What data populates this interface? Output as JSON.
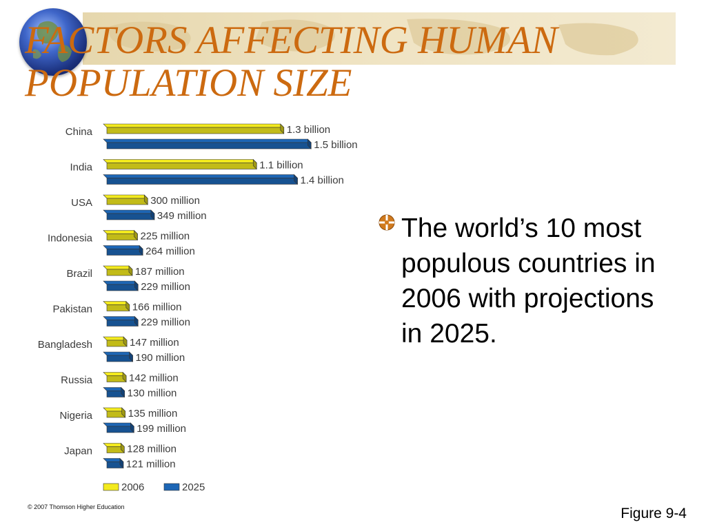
{
  "slide": {
    "title": "FACTORS AFFECTING HUMAN POPULATION SIZE",
    "bullet": "The world’s 10 most populous countries in 2006 with projections in 2025.",
    "figure_label": "Figure 9-4",
    "copyright": "© 2007 Thomson Higher Education",
    "accent_color": "#cc6a10"
  },
  "chart_data": {
    "type": "bar",
    "orientation": "horizontal",
    "categories": [
      "China",
      "India",
      "USA",
      "Indonesia",
      "Brazil",
      "Pakistan",
      "Bangladesh",
      "Russia",
      "Nigeria",
      "Japan"
    ],
    "series": [
      {
        "name": "2006",
        "color": "#f3ea1e",
        "values": [
          1300,
          1100,
          300,
          225,
          187,
          166,
          147,
          142,
          135,
          128
        ],
        "labels": [
          "1.3 billion",
          "1.1 billion",
          "300 million",
          "225 million",
          "187 million",
          "166 million",
          "147 million",
          "142 million",
          "135 million",
          "128 million"
        ]
      },
      {
        "name": "2025",
        "color": "#1d66b5",
        "values": [
          1500,
          1400,
          349,
          264,
          229,
          229,
          190,
          130,
          199,
          121
        ],
        "labels": [
          "1.5 billion",
          "1.4 billion",
          "349 million",
          "264 million",
          "229 million",
          "229 million",
          "190 million",
          "130 million",
          "199 million",
          "121 million"
        ]
      }
    ],
    "legend": [
      "2006",
      "2025"
    ],
    "legend_position": "bottom-left",
    "grid": false
  }
}
